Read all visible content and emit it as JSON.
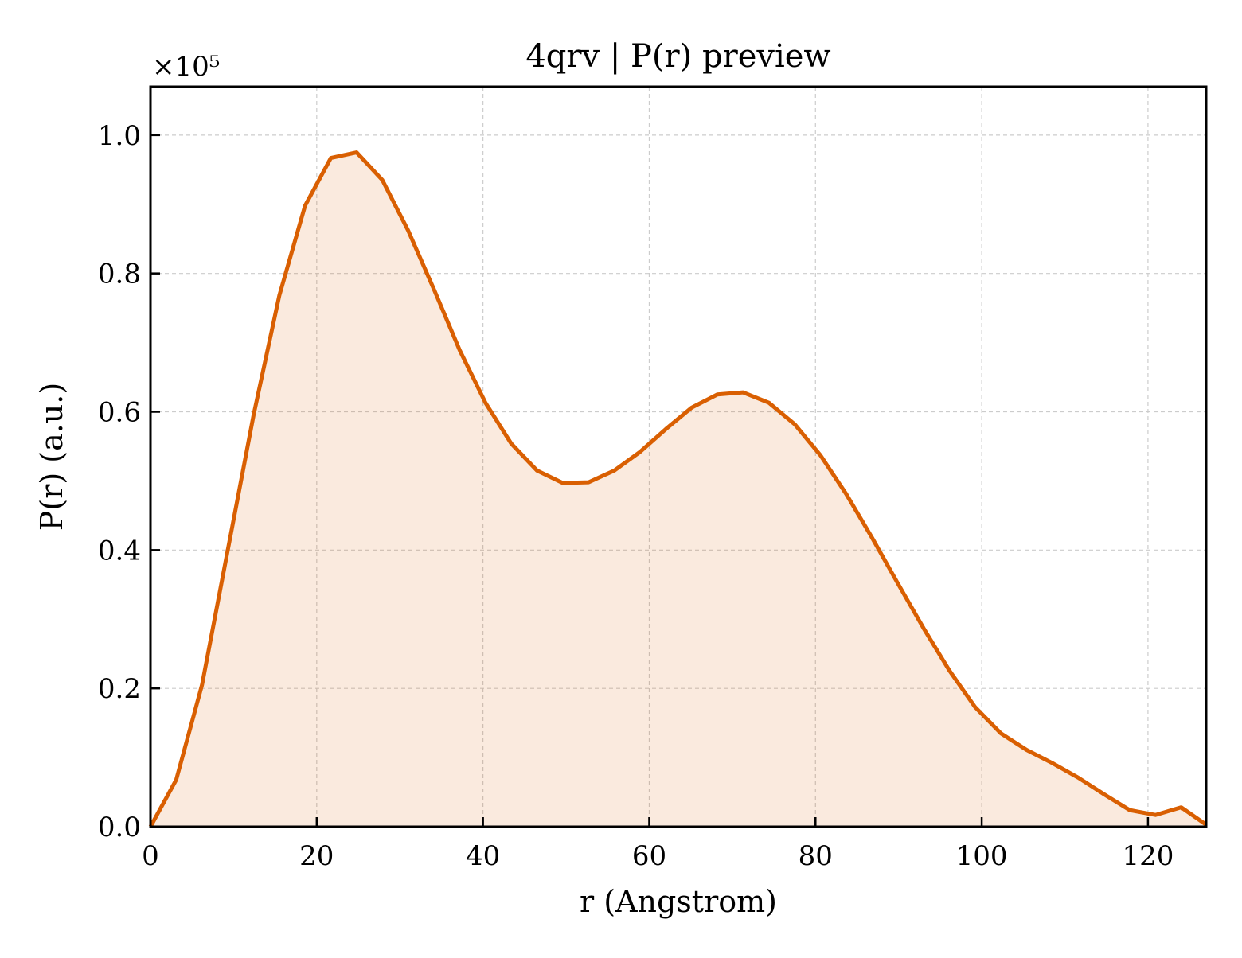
{
  "chart_data": {
    "type": "area",
    "title": "4qrv | P(r) preview",
    "xlabel": "r (Angstrom)",
    "ylabel": "P(r) (a.u.)",
    "y_multiplier_label": "×10⁵",
    "xlim": [
      0,
      127
    ],
    "ylim": [
      0,
      1.07
    ],
    "xticks": [
      0,
      20,
      40,
      60,
      80,
      100,
      120
    ],
    "xtick_labels": [
      "0",
      "20",
      "40",
      "60",
      "80",
      "100",
      "120"
    ],
    "yticks": [
      0.0,
      0.2,
      0.4,
      0.6,
      0.8,
      1.0
    ],
    "ytick_labels": [
      "0.0",
      "0.2",
      "0.4",
      "0.6",
      "0.8",
      "1.0"
    ],
    "grid": true,
    "line_color": "#d95f02",
    "fill_color": "#d95f02",
    "fill_opacity": 0.13,
    "grid_color": "#cccccc",
    "series": [
      {
        "x": [
          0,
          3.1,
          6.2,
          9.3,
          12.4,
          15.5,
          18.6,
          21.7,
          24.8,
          27.9,
          31.0,
          34.1,
          37.2,
          40.3,
          43.4,
          46.5,
          49.6,
          52.7,
          55.8,
          58.9,
          62.0,
          65.1,
          68.2,
          71.3,
          74.4,
          77.5,
          80.6,
          83.7,
          86.8,
          89.9,
          93.0,
          96.1,
          99.2,
          102.3,
          105.4,
          108.5,
          111.6,
          114.7,
          117.8,
          120.9,
          124.0,
          127.0
        ],
        "y": [
          0.0,
          0.068,
          0.205,
          0.4,
          0.595,
          0.768,
          0.898,
          0.967,
          0.975,
          0.935,
          0.862,
          0.777,
          0.689,
          0.613,
          0.554,
          0.515,
          0.497,
          0.498,
          0.515,
          0.542,
          0.575,
          0.606,
          0.625,
          0.628,
          0.613,
          0.582,
          0.537,
          0.481,
          0.418,
          0.352,
          0.287,
          0.226,
          0.173,
          0.135,
          0.111,
          0.092,
          0.071,
          0.047,
          0.024,
          0.017,
          0.028,
          0.003
        ]
      }
    ]
  }
}
